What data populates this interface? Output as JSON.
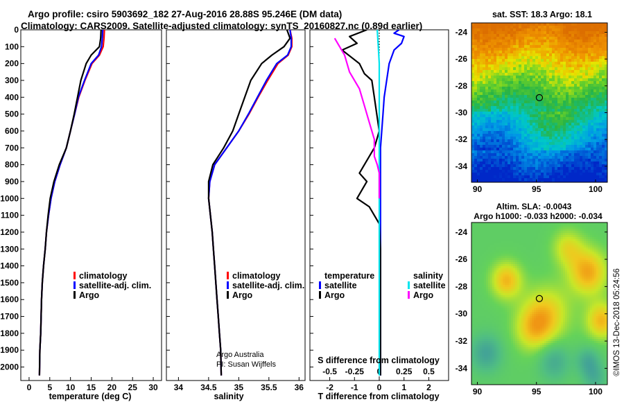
{
  "header": {
    "line1": "Argo profile: csiro 5903692_182 27-Aug-2016 28.88S 95.246E (DM data)",
    "line2": "Climatology: CARS2009. Satellite-adjusted climatology: synTS_20160827.nc (0.89d earlier)"
  },
  "colors": {
    "climatology": "#ff0000",
    "satellite": "#0000ff",
    "argo": "#000000",
    "satellite_salinity": "#00e5ee",
    "argo_salinity": "#ff00ff"
  },
  "chart_data": [
    {
      "id": "temperature",
      "type": "line",
      "xlabel": "temperature (deg C)",
      "ylabel": "",
      "xlim": [
        -2,
        32
      ],
      "ylim": [
        2080,
        0
      ],
      "xticks": [
        0,
        5,
        10,
        15,
        20,
        25,
        30
      ],
      "yticks": [
        0,
        100,
        200,
        300,
        400,
        500,
        600,
        700,
        800,
        900,
        1000,
        1100,
        1200,
        1300,
        1400,
        1500,
        1600,
        1700,
        1800,
        1900,
        2000
      ],
      "legend": [
        "climatology",
        "satellite-adj. clim.",
        "Argo"
      ],
      "series": [
        {
          "name": "climatology",
          "color": "#ff0000",
          "x": [
            18.2,
            18.1,
            17.9,
            17.0,
            15.2,
            13.5,
            12.0,
            11.0,
            10.0,
            9.0,
            7.5,
            6.2,
            5.3,
            4.7,
            4.2,
            3.9,
            3.5,
            3.2,
            3.0,
            2.9,
            2.8,
            2.6,
            2.5
          ],
          "y": [
            0,
            50,
            100,
            150,
            200,
            300,
            400,
            500,
            600,
            700,
            800,
            900,
            1000,
            1100,
            1200,
            1300,
            1400,
            1500,
            1600,
            1700,
            1800,
            1900,
            2050
          ]
        },
        {
          "name": "satellite-adj. clim.",
          "color": "#0000ff",
          "x": [
            17.8,
            17.7,
            17.5,
            16.8,
            15.0,
            13.4,
            11.9,
            11.0,
            10.0,
            9.0,
            7.5,
            6.2,
            5.3,
            4.7,
            4.2,
            3.9,
            3.5,
            3.2,
            3.0,
            2.9,
            2.8,
            2.6,
            2.5
          ],
          "y": [
            0,
            50,
            100,
            150,
            200,
            300,
            400,
            500,
            600,
            700,
            800,
            900,
            1000,
            1100,
            1200,
            1300,
            1400,
            1500,
            1600,
            1700,
            1800,
            1900,
            2050
          ]
        },
        {
          "name": "Argo",
          "color": "#000000",
          "x": [
            17.4,
            17.3,
            17.0,
            15.0,
            13.8,
            12.5,
            11.7,
            10.9,
            10.0,
            9.0,
            7.3,
            6.0,
            5.1,
            4.6,
            4.2,
            3.9,
            3.5,
            3.2,
            3.0,
            2.9,
            2.8,
            2.6,
            2.5
          ],
          "y": [
            0,
            50,
            100,
            150,
            200,
            300,
            400,
            500,
            600,
            700,
            800,
            900,
            1000,
            1100,
            1200,
            1300,
            1400,
            1500,
            1600,
            1700,
            1800,
            1900,
            2050
          ]
        }
      ]
    },
    {
      "id": "salinity",
      "type": "line",
      "xlabel": "salinity",
      "xlim": [
        33.8,
        36.1
      ],
      "ylim": [
        2080,
        0
      ],
      "xticks": [
        34,
        34.5,
        35,
        35.5,
        36
      ],
      "legend": [
        "climatology",
        "satellite-adj. clim.",
        "Argo"
      ],
      "credit1": "Argo Australia",
      "credit2": "PI: Susan Wijffels",
      "series": [
        {
          "name": "climatology",
          "color": "#ff0000",
          "x": [
            35.85,
            35.88,
            35.88,
            35.82,
            35.65,
            35.48,
            35.32,
            35.17,
            35.0,
            34.8,
            34.6,
            34.52,
            34.5,
            34.53,
            34.56,
            34.58,
            34.6,
            34.62,
            34.64,
            34.66,
            34.68,
            34.7,
            34.71
          ],
          "y": [
            0,
            50,
            100,
            150,
            200,
            300,
            400,
            500,
            600,
            700,
            800,
            900,
            1000,
            1100,
            1200,
            1300,
            1400,
            1500,
            1600,
            1700,
            1800,
            1900,
            2050
          ]
        },
        {
          "name": "satellite-adj. clim.",
          "color": "#0000ff",
          "x": [
            35.85,
            35.87,
            35.87,
            35.81,
            35.63,
            35.46,
            35.31,
            35.16,
            35.0,
            34.8,
            34.6,
            34.52,
            34.5,
            34.53,
            34.56,
            34.58,
            34.6,
            34.62,
            34.64,
            34.66,
            34.68,
            34.7,
            34.71
          ],
          "y": [
            0,
            50,
            100,
            150,
            200,
            300,
            400,
            500,
            600,
            700,
            800,
            900,
            1000,
            1100,
            1200,
            1300,
            1400,
            1500,
            1600,
            1700,
            1800,
            1900,
            2050
          ]
        },
        {
          "name": "Argo",
          "color": "#000000",
          "x": [
            35.8,
            35.85,
            35.75,
            35.55,
            35.38,
            35.2,
            35.1,
            35.0,
            34.9,
            34.75,
            34.57,
            34.5,
            34.5,
            34.53,
            34.56,
            34.58,
            34.6,
            34.62,
            34.64,
            34.66,
            34.68,
            34.7,
            34.71
          ],
          "y": [
            0,
            50,
            100,
            150,
            200,
            300,
            400,
            500,
            600,
            700,
            800,
            900,
            1000,
            1100,
            1200,
            1300,
            1400,
            1500,
            1600,
            1700,
            1800,
            1900,
            2050
          ]
        }
      ]
    },
    {
      "id": "difference",
      "type": "line",
      "xlabel": "T difference from climatology",
      "top_label": "S difference from climatology",
      "xlim": [
        -2.8,
        2.8
      ],
      "ylim": [
        2080,
        0
      ],
      "xticks": [
        -2,
        -1,
        0,
        1,
        2
      ],
      "sticks_labels": [
        "-0.5",
        "-0.25",
        "0",
        "0.25",
        "0.5"
      ],
      "sticks_values": [
        -0.5,
        -0.25,
        0,
        0.25,
        0.5
      ],
      "slim": [
        -0.7,
        0.7
      ],
      "legend_left_title": "temperature",
      "legend_right_title": "salinity",
      "legend_left": [
        "satellite",
        "Argo"
      ],
      "legend_right": [
        "satellite",
        "Argo"
      ],
      "series": [
        {
          "name": "T satellite",
          "color": "#0000ff",
          "x": [
            0.8,
            0.6,
            1.0,
            0.9,
            0.6,
            0.4,
            0.3,
            0.2,
            0.15,
            0.1,
            0.05,
            0.05,
            0.05,
            0.05,
            0.05,
            0.05,
            0.05,
            0.05,
            0.05,
            0.05,
            0.05
          ],
          "y": [
            0,
            20,
            40,
            80,
            120,
            200,
            300,
            400,
            500,
            600,
            700,
            800,
            900,
            1000,
            1200,
            1400,
            1600,
            1800,
            1900,
            2000,
            2050
          ]
        },
        {
          "name": "T Argo",
          "color": "#000000",
          "x": [
            -0.5,
            -1.2,
            -0.9,
            -1.5,
            -0.8,
            -0.6,
            -0.3,
            -0.2,
            -0.1,
            0.0,
            -0.2,
            -0.6,
            -0.8,
            -0.5,
            -0.9,
            -0.4,
            0.0,
            0.05,
            0.05,
            0.05,
            0.05
          ],
          "y": [
            0,
            40,
            80,
            120,
            200,
            260,
            300,
            400,
            500,
            600,
            700,
            800,
            850,
            900,
            1000,
            1050,
            1150,
            1300,
            1600,
            1900,
            2050
          ]
        },
        {
          "name": "S satellite",
          "color": "#00e5ee",
          "x": [
            -0.02,
            -0.01,
            0.0,
            0.0,
            0.0,
            0.0,
            0.0,
            0.0,
            0.0,
            0.0,
            0.0,
            0.0,
            0.0,
            0.0
          ],
          "y": [
            0,
            100,
            200,
            400,
            600,
            800,
            1000,
            1200,
            1400,
            1600,
            1800,
            1900,
            2000,
            2050
          ]
        },
        {
          "name": "S Argo",
          "color": "#ff00ff",
          "x": [
            -0.45,
            -0.35,
            -0.3,
            -0.2,
            -0.15,
            -0.1,
            -0.05,
            -0.05,
            -0.02,
            0.0,
            0.0,
            0.0,
            0.0
          ],
          "y": [
            50,
            150,
            250,
            350,
            450,
            550,
            650,
            750,
            800,
            850,
            900,
            950,
            1000
          ]
        }
      ]
    }
  ],
  "maps": {
    "sst": {
      "title": "sat. SST: 18.3 Argo: 18.1",
      "xticks": [
        "90",
        "95",
        "100"
      ],
      "yticks": [
        "-24",
        "-26",
        "-28",
        "-30",
        "-32",
        "-34"
      ],
      "xlim": [
        89.5,
        101
      ],
      "ylim": [
        -23.3,
        -35.2
      ]
    },
    "sla": {
      "title1": "Altim. SLA: -0.0043",
      "title2": "Argo h1000: -0.033 h2000: -0.034",
      "xticks": [
        "90",
        "95",
        "100"
      ],
      "yticks": [
        "-24",
        "-26",
        "-28",
        "-30",
        "-32",
        "-34"
      ],
      "xlim": [
        89.5,
        101
      ],
      "ylim": [
        -23.3,
        -35.2
      ]
    },
    "float_lon": 95.246,
    "float_lat": -28.88
  },
  "footer": {
    "stamp": "©IMOS 13-Dec-2018 05:24:56"
  }
}
